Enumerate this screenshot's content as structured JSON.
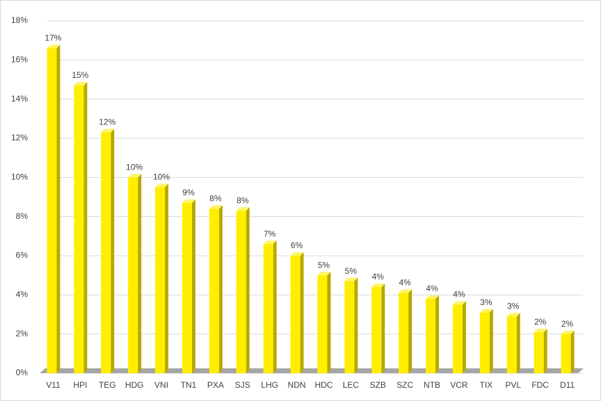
{
  "chart_data": {
    "type": "bar",
    "categories": [
      "V11",
      "HPI",
      "TEG",
      "HDG",
      "VNI",
      "TN1",
      "PXA",
      "SJS",
      "LHG",
      "NDN",
      "HDC",
      "LEC",
      "SZB",
      "SZC",
      "NTB",
      "VCR",
      "TIX",
      "PVL",
      "FDC",
      "D11"
    ],
    "values": [
      16.6,
      14.7,
      12.3,
      10.0,
      9.5,
      8.7,
      8.4,
      8.3,
      6.6,
      6.0,
      5.0,
      4.7,
      4.4,
      4.1,
      3.8,
      3.5,
      3.1,
      2.9,
      2.1,
      2.0
    ],
    "value_labels": [
      "17%",
      "15%",
      "12%",
      "10%",
      "10%",
      "9%",
      "8%",
      "8%",
      "7%",
      "6%",
      "5%",
      "5%",
      "4%",
      "4%",
      "4%",
      "4%",
      "3%",
      "3%",
      "2%",
      "2%"
    ],
    "color": "#ffee00",
    "ylim": [
      0,
      18
    ],
    "yticks": [
      {
        "value": 0,
        "label": "0%"
      },
      {
        "value": 2,
        "label": "2%"
      },
      {
        "value": 4,
        "label": "4%"
      },
      {
        "value": 6,
        "label": "6%"
      },
      {
        "value": 8,
        "label": "8%"
      },
      {
        "value": 10,
        "label": "10%"
      },
      {
        "value": 12,
        "label": "12%"
      },
      {
        "value": 14,
        "label": "14%"
      },
      {
        "value": 16,
        "label": "16%"
      },
      {
        "value": 18,
        "label": "18%"
      }
    ],
    "grid": true
  }
}
